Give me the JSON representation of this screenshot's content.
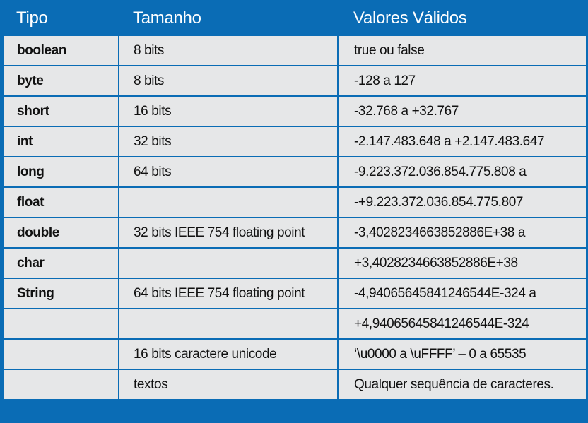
{
  "table": {
    "headers": [
      "Tipo",
      "Tamanho",
      "Valores Válidos"
    ],
    "rows": [
      {
        "tipo": "boolean",
        "tamanho": "8 bits",
        "valores": "true ou false"
      },
      {
        "tipo": "byte",
        "tamanho": "8 bits",
        "valores": "-128 a 127"
      },
      {
        "tipo": "short",
        "tamanho": "16 bits",
        "valores": "-32.768 a +32.767"
      },
      {
        "tipo": "int",
        "tamanho": "32 bits",
        "valores": "-2.147.483.648 a +2.147.483.647"
      },
      {
        "tipo": "long",
        "tamanho": "64 bits",
        "valores": "-9.223.372.036.854.775.808 a"
      },
      {
        "tipo": "float",
        "tamanho": "",
        "valores": "-+9.223.372.036.854.775.807"
      },
      {
        "tipo": "double",
        "tamanho": "32 bits IEEE 754 floating point",
        "valores": "-3,4028234663852886E+38 a"
      },
      {
        "tipo": "char",
        "tamanho": "",
        "valores": "+3,4028234663852886E+38"
      },
      {
        "tipo": "String",
        "tamanho": "64 bits IEEE 754 floating point",
        "valores": "-4,94065645841246544E-324 a"
      },
      {
        "tipo": "",
        "tamanho": "",
        "valores": "+4,94065645841246544E-324"
      },
      {
        "tipo": "",
        "tamanho": "16 bits caractere unicode",
        "valores": "‘\\u0000 a \\uFFFF’ – 0 a 65535"
      },
      {
        "tipo": "",
        "tamanho": "textos",
        "valores": "Qualquer sequência de caracteres."
      }
    ]
  },
  "colors": {
    "header_bg": "#0a6cb5",
    "cell_bg": "#e6e7e8",
    "grid": "#0a6cb5"
  }
}
